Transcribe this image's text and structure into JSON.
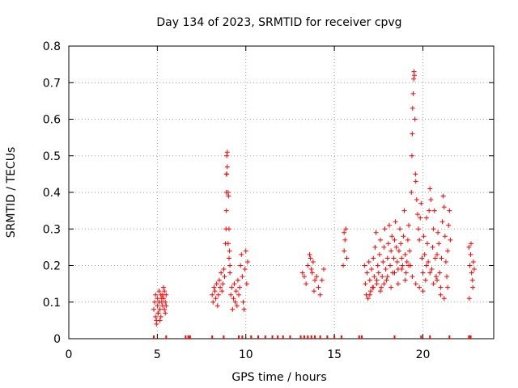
{
  "chart_data": {
    "type": "scatter",
    "title": "Day 134 of 2023, SRMTID for receiver cpvg",
    "xlabel": "GPS time / hours",
    "ylabel": "SRMTID / TECUs",
    "xlim": [
      0,
      24
    ],
    "ylim": [
      0,
      0.8
    ],
    "xticks": [
      0,
      5,
      10,
      15,
      20
    ],
    "yticks": [
      0,
      0.1,
      0.2,
      0.3,
      0.4,
      0.5,
      0.6,
      0.7,
      0.8
    ],
    "ytick_labels": [
      "0",
      "0.1",
      "0.2",
      "0.3",
      "0.4",
      "0.5",
      "0.6",
      "0.7",
      "0.8"
    ],
    "grid": true,
    "marker": "+",
    "series": [
      {
        "name": "SRMTID",
        "color": "#ff0000",
        "x": [
          4.8,
          4.85,
          4.9,
          4.9,
          4.95,
          5.0,
          5.0,
          5.05,
          5.1,
          5.1,
          5.15,
          5.2,
          5.2,
          5.25,
          5.3,
          5.3,
          5.35,
          5.4,
          5.4,
          5.45,
          5.5,
          5.5,
          4.95,
          5.05,
          5.15,
          5.25,
          5.35,
          5.45,
          8.1,
          8.15,
          8.2,
          8.25,
          8.3,
          8.35,
          8.4,
          8.45,
          8.5,
          8.55,
          8.6,
          8.65,
          8.7,
          8.75,
          8.8,
          8.85,
          8.9,
          8.9,
          8.9,
          8.92,
          8.95,
          9.0,
          9.05,
          9.1,
          9.15,
          9.2,
          9.25,
          9.3,
          9.35,
          9.4,
          9.45,
          9.5,
          9.55,
          9.6,
          9.65,
          9.7,
          9.75,
          9.8,
          9.85,
          9.9,
          9.95,
          10.0,
          10.05,
          10.1,
          8.88,
          8.92,
          8.95,
          9.0,
          9.02,
          9.05,
          9.08,
          9.1,
          13.2,
          13.3,
          13.4,
          13.5,
          13.6,
          13.7,
          13.8,
          13.9,
          14.0,
          14.1,
          14.2,
          14.3,
          14.4,
          13.65,
          13.75,
          13.85,
          15.5,
          15.55,
          15.6,
          15.65,
          15.7,
          15.55,
          16.7,
          16.75,
          16.8,
          16.85,
          16.9,
          16.95,
          17.0,
          17.05,
          17.1,
          17.15,
          17.2,
          17.25,
          17.3,
          17.35,
          17.4,
          17.45,
          17.5,
          17.55,
          17.6,
          17.65,
          17.7,
          17.75,
          17.8,
          17.85,
          17.9,
          17.95,
          18.0,
          18.05,
          18.1,
          18.15,
          18.2,
          18.25,
          18.3,
          18.35,
          18.4,
          18.45,
          18.5,
          18.55,
          18.6,
          18.65,
          18.7,
          18.75,
          18.8,
          18.85,
          18.9,
          18.95,
          19.0,
          19.05,
          19.1,
          19.15,
          19.2,
          19.25,
          19.3,
          19.35,
          19.38,
          19.4,
          19.42,
          19.45,
          19.48,
          19.5,
          19.52,
          19.55,
          19.58,
          19.6,
          19.65,
          19.7,
          19.75,
          19.8,
          19.85,
          19.9,
          19.95,
          20.0,
          20.05,
          20.1,
          20.15,
          20.2,
          20.25,
          20.3,
          20.35,
          20.4,
          20.45,
          20.5,
          20.55,
          20.6,
          20.65,
          20.7,
          20.75,
          20.8,
          20.85,
          20.9,
          20.95,
          21.0,
          21.05,
          21.1,
          21.15,
          21.2,
          21.25,
          21.3,
          21.35,
          21.4,
          21.45,
          21.5,
          21.55,
          17.0,
          17.2,
          17.4,
          17.6,
          17.8,
          18.0,
          18.2,
          18.4,
          18.6,
          18.8,
          19.0,
          19.2,
          19.4,
          19.6,
          19.8,
          20.0,
          20.2,
          20.4,
          20.6,
          20.8,
          21.0,
          21.2,
          21.4,
          22.6,
          22.65,
          22.7,
          22.75,
          22.8,
          22.85,
          22.9,
          22.62,
          22.72,
          22.82
        ],
        "y": [
          0.08,
          0.1,
          0.06,
          0.12,
          0.05,
          0.09,
          0.11,
          0.07,
          0.1,
          0.13,
          0.08,
          0.12,
          0.06,
          0.1,
          0.09,
          0.12,
          0.11,
          0.13,
          0.08,
          0.1,
          0.12,
          0.09,
          0.04,
          0.07,
          0.05,
          0.11,
          0.14,
          0.07,
          0.12,
          0.1,
          0.14,
          0.13,
          0.11,
          0.15,
          0.09,
          0.12,
          0.16,
          0.14,
          0.18,
          0.13,
          0.15,
          0.19,
          0.17,
          0.26,
          0.35,
          0.4,
          0.45,
          0.5,
          0.51,
          0.26,
          0.22,
          0.18,
          0.12,
          0.14,
          0.08,
          0.11,
          0.15,
          0.1,
          0.13,
          0.09,
          0.16,
          0.12,
          0.14,
          0.2,
          0.23,
          0.17,
          0.1,
          0.08,
          0.19,
          0.24,
          0.15,
          0.21,
          0.3,
          0.45,
          0.47,
          0.4,
          0.39,
          0.3,
          0.24,
          0.2,
          0.18,
          0.17,
          0.15,
          0.2,
          0.23,
          0.19,
          0.21,
          0.16,
          0.17,
          0.14,
          0.12,
          0.16,
          0.19,
          0.22,
          0.18,
          0.13,
          0.2,
          0.24,
          0.27,
          0.3,
          0.22,
          0.29,
          0.2,
          0.15,
          0.12,
          0.18,
          0.11,
          0.21,
          0.16,
          0.13,
          0.19,
          0.14,
          0.22,
          0.17,
          0.25,
          0.29,
          0.15,
          0.2,
          0.18,
          0.23,
          0.27,
          0.14,
          0.17,
          0.21,
          0.25,
          0.3,
          0.19,
          0.16,
          0.22,
          0.26,
          0.31,
          0.2,
          0.24,
          0.28,
          0.18,
          0.22,
          0.27,
          0.32,
          0.25,
          0.21,
          0.19,
          0.24,
          0.3,
          0.26,
          0.22,
          0.2,
          0.28,
          0.35,
          0.23,
          0.18,
          0.21,
          0.27,
          0.31,
          0.24,
          0.2,
          0.4,
          0.5,
          0.56,
          0.63,
          0.67,
          0.71,
          0.73,
          0.72,
          0.6,
          0.45,
          0.43,
          0.38,
          0.34,
          0.3,
          0.27,
          0.33,
          0.37,
          0.22,
          0.18,
          0.28,
          0.23,
          0.16,
          0.33,
          0.26,
          0.21,
          0.35,
          0.41,
          0.38,
          0.19,
          0.25,
          0.3,
          0.35,
          0.22,
          0.17,
          0.23,
          0.29,
          0.26,
          0.18,
          0.14,
          0.22,
          0.32,
          0.39,
          0.36,
          0.28,
          0.21,
          0.17,
          0.24,
          0.31,
          0.35,
          0.27,
          0.12,
          0.14,
          0.16,
          0.13,
          0.15,
          0.17,
          0.14,
          0.18,
          0.15,
          0.19,
          0.16,
          0.2,
          0.17,
          0.15,
          0.14,
          0.13,
          0.2,
          0.18,
          0.15,
          0.16,
          0.12,
          0.11,
          0.14,
          0.25,
          0.2,
          0.23,
          0.18,
          0.16,
          0.21,
          0.19,
          0.11,
          0.26,
          0.14
        ]
      }
    ],
    "zero_marks_x": [
      4.8,
      5.5,
      6.6,
      6.75,
      6.85,
      8.1,
      8.75,
      9.6,
      9.8,
      10.3,
      10.7,
      11.1,
      11.5,
      11.8,
      12.1,
      12.5,
      13.1,
      13.3,
      13.5,
      13.7,
      13.9,
      14.2,
      14.6,
      15.0,
      15.4,
      16.4,
      16.55,
      18.4,
      19.9,
      20.4,
      21.5,
      22.6,
      22.7
    ]
  }
}
